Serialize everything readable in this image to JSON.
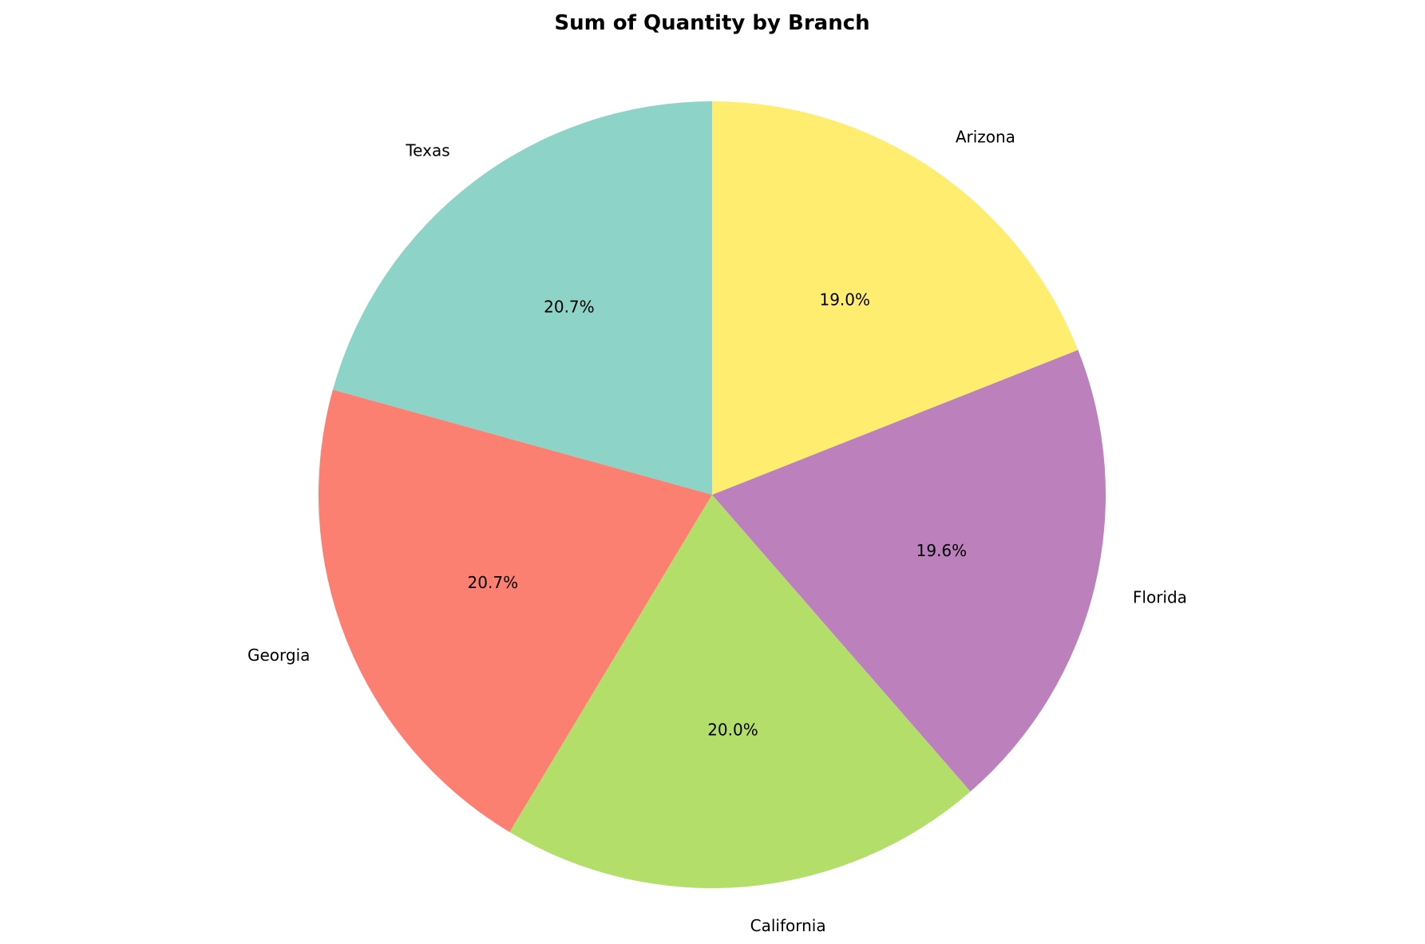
{
  "chart_data": {
    "type": "pie",
    "title": "Sum of Quantity by Branch",
    "start": "top",
    "direction": "counterclockwise",
    "slices": [
      {
        "label": "Texas",
        "percent": 20.7,
        "display": "20.7%",
        "color": "#8dd3c7"
      },
      {
        "label": "Georgia",
        "percent": 20.7,
        "display": "20.7%",
        "color": "#fb8072"
      },
      {
        "label": "California",
        "percent": 20.0,
        "display": "20.0%",
        "color": "#b3de69"
      },
      {
        "label": "Florida",
        "percent": 19.6,
        "display": "19.6%",
        "color": "#bc80bd"
      },
      {
        "label": "Arizona",
        "percent": 19.0,
        "display": "19.0%",
        "color": "#ffed6f"
      }
    ]
  }
}
